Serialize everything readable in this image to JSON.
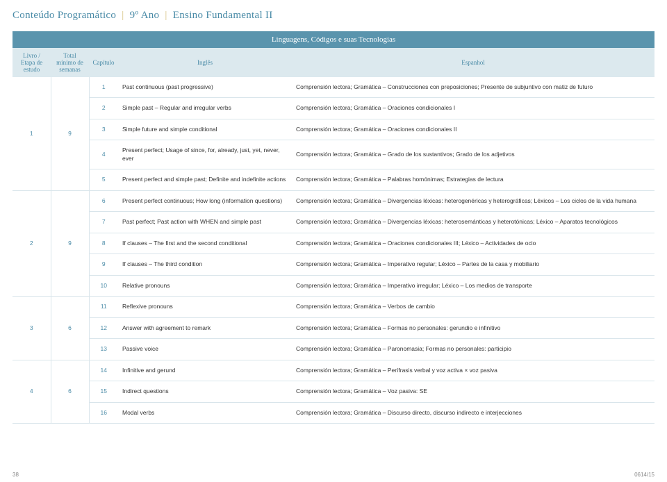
{
  "header": {
    "title_a": "Conteúdo Programático",
    "title_b": "9º Ano",
    "title_c": "Ensino Fundamental II"
  },
  "section_title": "Linguagens, Códigos e suas Tecnologias",
  "columns": {
    "livro": "Livro / Etapa de estudo",
    "total": "Total mínimo de semanas",
    "capitulo": "Capítulo",
    "ingles": "Inglês",
    "espanhol": "Espanhol"
  },
  "groups": [
    {
      "livro": "1",
      "semanas": "9",
      "rows": [
        {
          "cap": "1",
          "ing": "Past continuous (past progressive)",
          "esp": "Comprensión lectora; Gramática – Construcciones con preposiciones; Presente de subjuntivo con matiz de futuro"
        },
        {
          "cap": "2",
          "ing": "Simple past – Regular and irregular verbs",
          "esp": "Comprensión lectora; Gramática – Oraciones condicionales I"
        },
        {
          "cap": "3",
          "ing": "Simple future and simple conditional",
          "esp": "Comprensión lectora; Gramática – Oraciones condicionales II"
        },
        {
          "cap": "4",
          "ing": "Present perfect; Usage of since, for, already, just, yet, never, ever",
          "esp": "Comprensión lectora; Gramática – Grado de los sustantivos; Grado de los adjetivos"
        },
        {
          "cap": "5",
          "ing": "Present perfect and simple past; Definite and indefinite actions",
          "esp": "Comprensión lectora; Gramática – Palabras homónimas; Estrategias de lectura"
        }
      ]
    },
    {
      "livro": "2",
      "semanas": "9",
      "rows": [
        {
          "cap": "6",
          "ing": "Present perfect continuous; How long (information questions)",
          "esp": "Comprensión lectora; Gramática – Divergencias léxicas: heterogenéricas y heterográficas; Léxicos – Los ciclos de la vida humana"
        },
        {
          "cap": "7",
          "ing": "Past perfect; Past action with WHEN and simple past",
          "esp": "Comprensión lectora; Gramática – Divergencias léxicas: heterosemánticas y heterotónicas; Léxico – Aparatos tecnológicos"
        },
        {
          "cap": "8",
          "ing": "If clauses – The first and the second conditional",
          "esp": "Comprensión lectora; Gramática – Oraciones condicionales III; Léxico – Actividades de ocio"
        },
        {
          "cap": "9",
          "ing": "If clauses – The third condition",
          "esp": "Comprensión lectora; Gramática – Imperativo regular; Léxico – Partes de la casa y mobiliario"
        },
        {
          "cap": "10",
          "ing": "Relative pronouns",
          "esp": "Comprensión lectora; Gramática – Imperativo irregular; Léxico – Los medios de transporte"
        }
      ]
    },
    {
      "livro": "3",
      "semanas": "6",
      "rows": [
        {
          "cap": "11",
          "ing": "Reflexive pronouns",
          "esp": "Comprensión lectora; Gramática – Verbos de cambio"
        },
        {
          "cap": "12",
          "ing": "Answer with agreement to remark",
          "esp": "Comprensión lectora; Gramática – Formas no personales: gerundio e infinitivo"
        },
        {
          "cap": "13",
          "ing": "Passive voice",
          "esp": "Comprensión lectora; Gramática – Paronomasia; Formas no personales: participio"
        }
      ]
    },
    {
      "livro": "4",
      "semanas": "6",
      "rows": [
        {
          "cap": "14",
          "ing": "Infinitive and gerund",
          "esp": "Comprensión lectora; Gramática – Perífrasis verbal y voz activa × voz pasiva"
        },
        {
          "cap": "15",
          "ing": "Indirect questions",
          "esp": "Comprensión lectora; Gramática – Voz pasiva: SE"
        },
        {
          "cap": "16",
          "ing": "Modal verbs",
          "esp": "Comprensión lectora; Gramática – Discurso directo, discurso indirecto e interjecciones"
        }
      ]
    }
  ],
  "footer": {
    "page": "38",
    "code": "0614/15"
  },
  "colors": {
    "header_bg": "#5a94ad",
    "sub_bg": "#dce9ee",
    "accent": "#4a8ba7",
    "gold": "#d6c180",
    "border": "#d9e5eb"
  }
}
